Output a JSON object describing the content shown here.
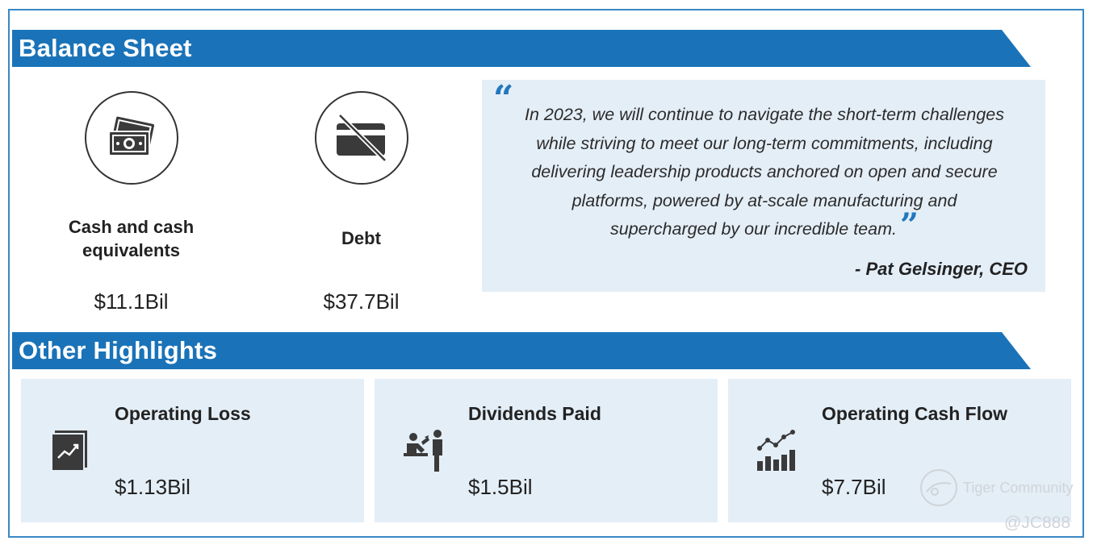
{
  "colors": {
    "accent": "#1a73b8",
    "panel": "#e4eef7",
    "quote_mark": "#2278bd"
  },
  "balance_sheet": {
    "heading": "Balance Sheet",
    "cash": {
      "icon": "cash-icon",
      "label_line1": "Cash and cash",
      "label_line2": "equivalents",
      "value": "$11.1Bil"
    },
    "debt": {
      "icon": "no-credit-card-icon",
      "label": "Debt",
      "value": "$37.7Bil"
    },
    "quote": {
      "open_mark": "“",
      "line1": "In 2023, we will continue to navigate the short-term challenges",
      "line2": "while striving to meet our long-term commitments, including",
      "line3": "delivering leadership products anchored on open and secure",
      "line4": "platforms, powered by at-scale manufacturing and",
      "line5": "supercharged by our incredible team.",
      "close_mark": "”",
      "author": "- Pat Gelsinger, CEO"
    }
  },
  "other_highlights": {
    "heading": "Other Highlights",
    "cards": [
      {
        "icon": "trend-chart-icon",
        "title": "Operating Loss",
        "value": "$1.13Bil"
      },
      {
        "icon": "dividend-people-icon",
        "title": "Dividends Paid",
        "value": "$1.5Bil"
      },
      {
        "icon": "growth-bars-icon",
        "title": "Operating Cash Flow",
        "value": "$7.7Bil"
      }
    ]
  },
  "watermark": {
    "name": "Tiger Community",
    "handle": "@JC888"
  }
}
